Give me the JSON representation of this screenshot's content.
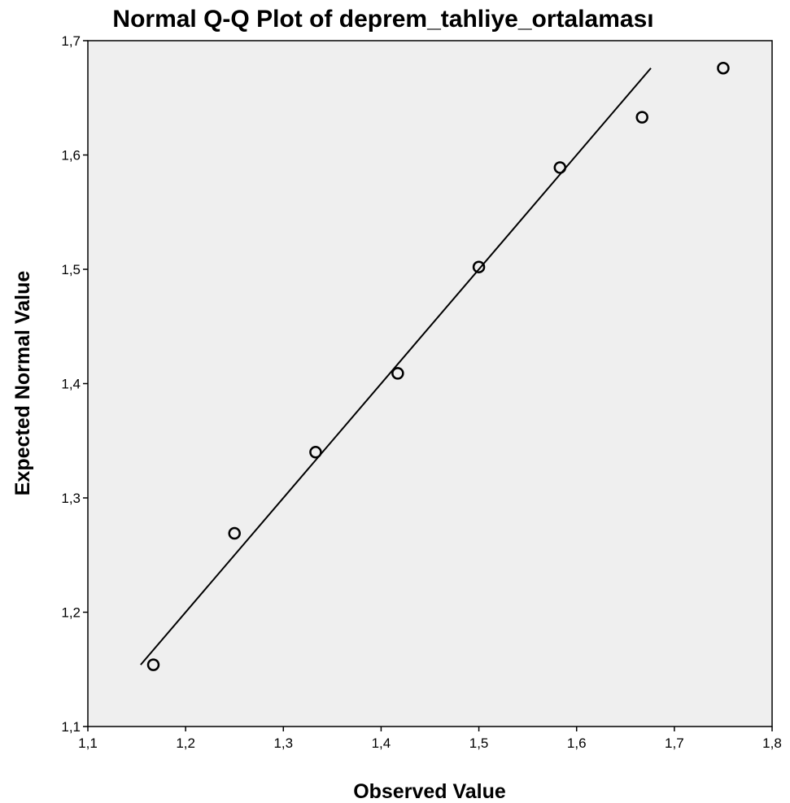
{
  "chart_data": {
    "type": "scatter",
    "title": "Normal Q-Q Plot of deprem_tahliye_ortalaması",
    "xlabel": "Observed Value",
    "ylabel": "Expected Normal Value",
    "xlim": [
      1.1,
      1.8
    ],
    "ylim": [
      1.1,
      1.7
    ],
    "x_ticks": [
      1.1,
      1.2,
      1.3,
      1.4,
      1.5,
      1.6,
      1.7,
      1.8
    ],
    "y_ticks": [
      1.1,
      1.2,
      1.3,
      1.4,
      1.5,
      1.6,
      1.7
    ],
    "x_tick_labels": [
      "1,1",
      "1,2",
      "1,3",
      "1,4",
      "1,5",
      "1,6",
      "1,7",
      "1,8"
    ],
    "y_tick_labels": [
      "1,1",
      "1,2",
      "1,3",
      "1,4",
      "1,5",
      "1,6",
      "1,7"
    ],
    "points": [
      {
        "x": 1.167,
        "y": 1.154
      },
      {
        "x": 1.25,
        "y": 1.269
      },
      {
        "x": 1.333,
        "y": 1.34
      },
      {
        "x": 1.417,
        "y": 1.409
      },
      {
        "x": 1.5,
        "y": 1.502
      },
      {
        "x": 1.583,
        "y": 1.589
      },
      {
        "x": 1.667,
        "y": 1.633
      },
      {
        "x": 1.75,
        "y": 1.676
      }
    ],
    "reference_line": {
      "x": [
        1.154,
        1.676
      ],
      "y": [
        1.154,
        1.676
      ]
    },
    "grid": false,
    "legend": "none",
    "colors": {
      "plot_background": "#efefef",
      "marker_edge": "#000000",
      "line": "#000000"
    }
  }
}
